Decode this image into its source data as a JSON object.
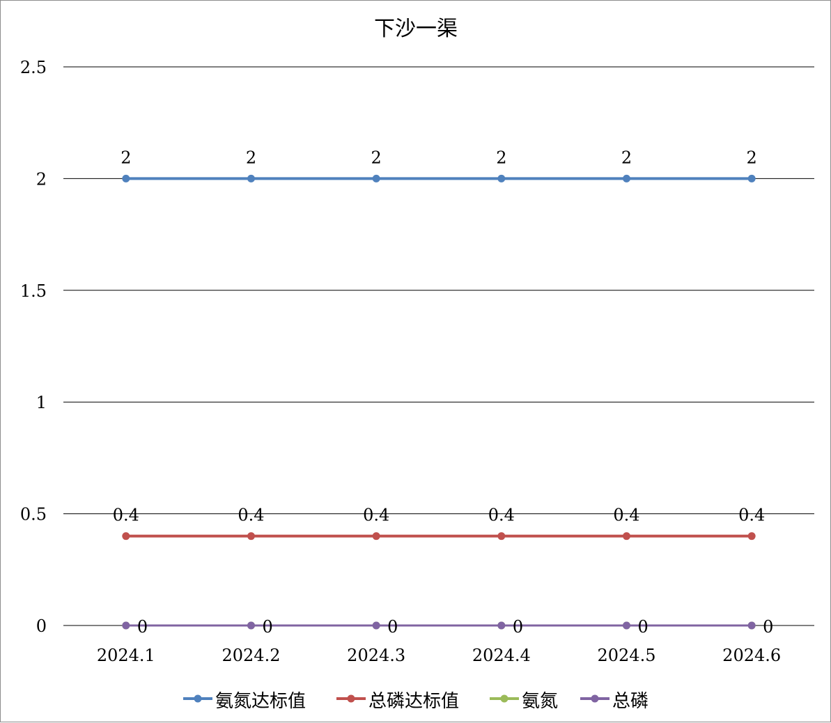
{
  "chart_data": {
    "type": "line",
    "title": "下沙一渠",
    "categories": [
      "2024.1",
      "2024.2",
      "2024.3",
      "2024.4",
      "2024.5",
      "2024.6"
    ],
    "y_ticks": [
      "0",
      "0.5",
      "1",
      "1.5",
      "2",
      "2.5"
    ],
    "ylim": [
      0,
      2.5
    ],
    "grid": true,
    "legend_position": "bottom",
    "series": [
      {
        "name": "氨氮达标值",
        "color": "#4f81bd",
        "values": [
          2,
          2,
          2,
          2,
          2,
          2
        ],
        "labels": [
          "2",
          "2",
          "2",
          "2",
          "2",
          "2"
        ],
        "label_position": "above"
      },
      {
        "name": "总磷达标值",
        "color": "#c0504d",
        "values": [
          0.4,
          0.4,
          0.4,
          0.4,
          0.4,
          0.4
        ],
        "labels": [
          "0.4",
          "0.4",
          "0.4",
          "0.4",
          "0.4",
          "0.4"
        ],
        "label_position": "above"
      },
      {
        "name": "氨氮",
        "color": "#9bbb59",
        "values": [
          0,
          0,
          0,
          0,
          0,
          0
        ],
        "labels": [],
        "label_position": "none"
      },
      {
        "name": "总磷",
        "color": "#8064a2",
        "values": [
          0,
          0,
          0,
          0,
          0,
          0
        ],
        "labels": [
          "0",
          "0",
          "0",
          "0",
          "0",
          "0"
        ],
        "label_position": "right"
      }
    ]
  }
}
